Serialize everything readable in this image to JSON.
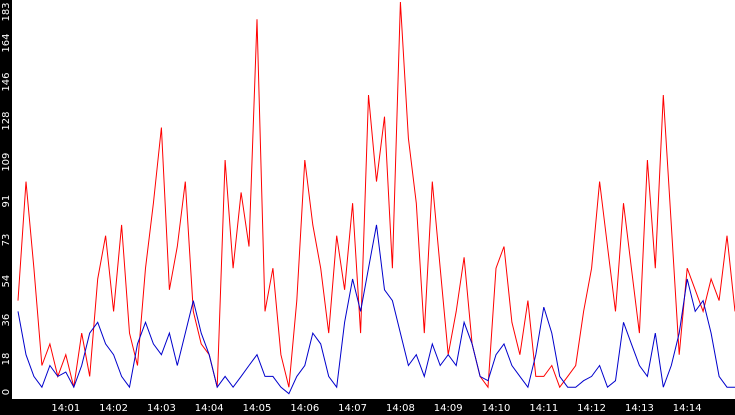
{
  "chart_data": {
    "type": "line",
    "categories": [
      null,
      null,
      null,
      null,
      null,
      null,
      "14:01",
      null,
      null,
      null,
      null,
      null,
      "14:02",
      null,
      null,
      null,
      null,
      null,
      "14:03",
      null,
      null,
      null,
      null,
      null,
      "14:04",
      null,
      null,
      null,
      null,
      null,
      "14:05",
      null,
      null,
      null,
      null,
      null,
      "14:06",
      null,
      null,
      null,
      null,
      null,
      "14:07",
      null,
      null,
      null,
      null,
      null,
      "14:08",
      null,
      null,
      null,
      null,
      null,
      "14:09",
      null,
      null,
      null,
      null,
      null,
      "14:10",
      null,
      null,
      null,
      null,
      null,
      "14:11",
      null,
      null,
      null,
      null,
      null,
      "14:12",
      null,
      null,
      null,
      null,
      null,
      "14:13",
      null,
      null,
      null,
      null,
      null,
      "14:14",
      null,
      null,
      null,
      null,
      null,
      null
    ],
    "series": [
      {
        "color": "#ff0000",
        "values": [
          45,
          100,
          60,
          15,
          25,
          10,
          20,
          5,
          30,
          10,
          55,
          75,
          40,
          80,
          30,
          15,
          60,
          90,
          125,
          50,
          70,
          100,
          40,
          25,
          20,
          5,
          110,
          60,
          95,
          70,
          175,
          40,
          60,
          20,
          5,
          45,
          110,
          80,
          60,
          30,
          75,
          50,
          90,
          30,
          140,
          100,
          130,
          60,
          183,
          120,
          90,
          30,
          100,
          60,
          20,
          40,
          65,
          25,
          10,
          5,
          60,
          70,
          35,
          20,
          45,
          10,
          10,
          15,
          5,
          10,
          15,
          40,
          60,
          100,
          70,
          40,
          90,
          60,
          30,
          110,
          60,
          140,
          80,
          20,
          60,
          50,
          40,
          55,
          45,
          75,
          40
        ]
      },
      {
        "color": "#0000cc",
        "values": [
          40,
          20,
          10,
          5,
          15,
          10,
          12,
          5,
          15,
          30,
          35,
          25,
          20,
          10,
          5,
          25,
          35,
          25,
          20,
          30,
          15,
          30,
          45,
          30,
          20,
          5,
          10,
          5,
          10,
          15,
          20,
          10,
          10,
          5,
          2,
          10,
          15,
          30,
          25,
          10,
          5,
          35,
          55,
          40,
          60,
          80,
          50,
          45,
          30,
          15,
          20,
          10,
          25,
          15,
          20,
          15,
          35,
          25,
          10,
          8,
          20,
          25,
          15,
          10,
          5,
          20,
          42,
          30,
          10,
          5,
          5,
          8,
          10,
          15,
          5,
          8,
          35,
          25,
          15,
          10,
          30,
          5,
          15,
          30,
          55,
          40,
          45,
          30,
          10,
          5,
          5
        ]
      }
    ],
    "ylim": [
      0,
      183
    ],
    "yticks": [
      0,
      18,
      36,
      54,
      73,
      91,
      109,
      128,
      146,
      164,
      183
    ]
  }
}
